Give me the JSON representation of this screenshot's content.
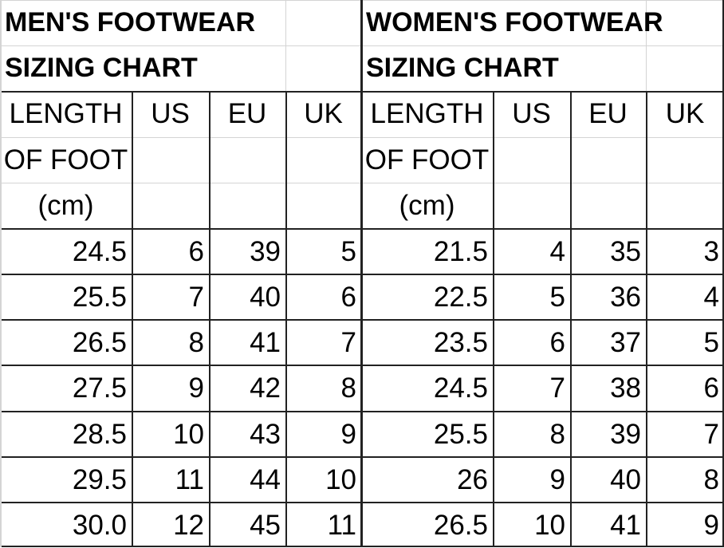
{
  "tables": [
    {
      "title": [
        "MEN'S FOOTWEAR",
        "SIZING CHART"
      ],
      "length_header": [
        "LENGTH",
        "OF FOOT",
        "(cm)"
      ],
      "size_headers": [
        "US",
        "EU",
        "UK"
      ],
      "rows": [
        [
          "24.5",
          "6",
          "39",
          "5"
        ],
        [
          "25.5",
          "7",
          "40",
          "6"
        ],
        [
          "26.5",
          "8",
          "41",
          "7"
        ],
        [
          "27.5",
          "9",
          "42",
          "8"
        ],
        [
          "28.5",
          "10",
          "43",
          "9"
        ],
        [
          "29.5",
          "11",
          "44",
          "10"
        ],
        [
          "30.0",
          "12",
          "45",
          "11"
        ]
      ]
    },
    {
      "title": [
        "WOMEN'S FOOTWEAR",
        "SIZING CHART"
      ],
      "length_header": [
        "LENGTH",
        "OF FOOT",
        "(cm)"
      ],
      "size_headers": [
        "US",
        "EU",
        "UK"
      ],
      "rows": [
        [
          "21.5",
          "4",
          "35",
          "3"
        ],
        [
          "22.5",
          "5",
          "36",
          "4"
        ],
        [
          "23.5",
          "6",
          "37",
          "5"
        ],
        [
          "24.5",
          "7",
          "38",
          "6"
        ],
        [
          "25.5",
          "8",
          "39",
          "7"
        ],
        [
          "26",
          "9",
          "40",
          "8"
        ],
        [
          "26.5",
          "10",
          "41",
          "9"
        ]
      ]
    }
  ]
}
